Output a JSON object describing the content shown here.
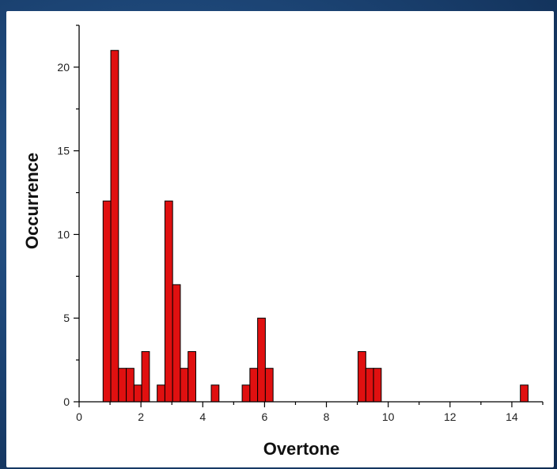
{
  "chart_data": {
    "type": "bar",
    "title": "",
    "xlabel": "Overtone",
    "ylabel": "Occurrence",
    "xlim": [
      0,
      15
    ],
    "ylim": [
      0,
      22.5
    ],
    "xticks": [
      0,
      2,
      4,
      6,
      8,
      10,
      12,
      14
    ],
    "yticks": [
      0,
      5,
      10,
      15,
      20
    ],
    "bin_width": 0.25,
    "grid": false,
    "bar_color": "#e01010",
    "bars": [
      {
        "x": 0.9,
        "value": 12
      },
      {
        "x": 1.15,
        "value": 21
      },
      {
        "x": 1.4,
        "value": 2
      },
      {
        "x": 1.65,
        "value": 2
      },
      {
        "x": 1.9,
        "value": 1
      },
      {
        "x": 2.15,
        "value": 3
      },
      {
        "x": 2.65,
        "value": 1
      },
      {
        "x": 2.9,
        "value": 12
      },
      {
        "x": 3.15,
        "value": 7
      },
      {
        "x": 3.4,
        "value": 2
      },
      {
        "x": 3.65,
        "value": 3
      },
      {
        "x": 4.4,
        "value": 1
      },
      {
        "x": 5.4,
        "value": 1
      },
      {
        "x": 5.65,
        "value": 2
      },
      {
        "x": 5.9,
        "value": 5
      },
      {
        "x": 6.15,
        "value": 2
      },
      {
        "x": 9.15,
        "value": 3
      },
      {
        "x": 9.4,
        "value": 2
      },
      {
        "x": 9.65,
        "value": 2
      },
      {
        "x": 14.4,
        "value": 1
      }
    ]
  }
}
